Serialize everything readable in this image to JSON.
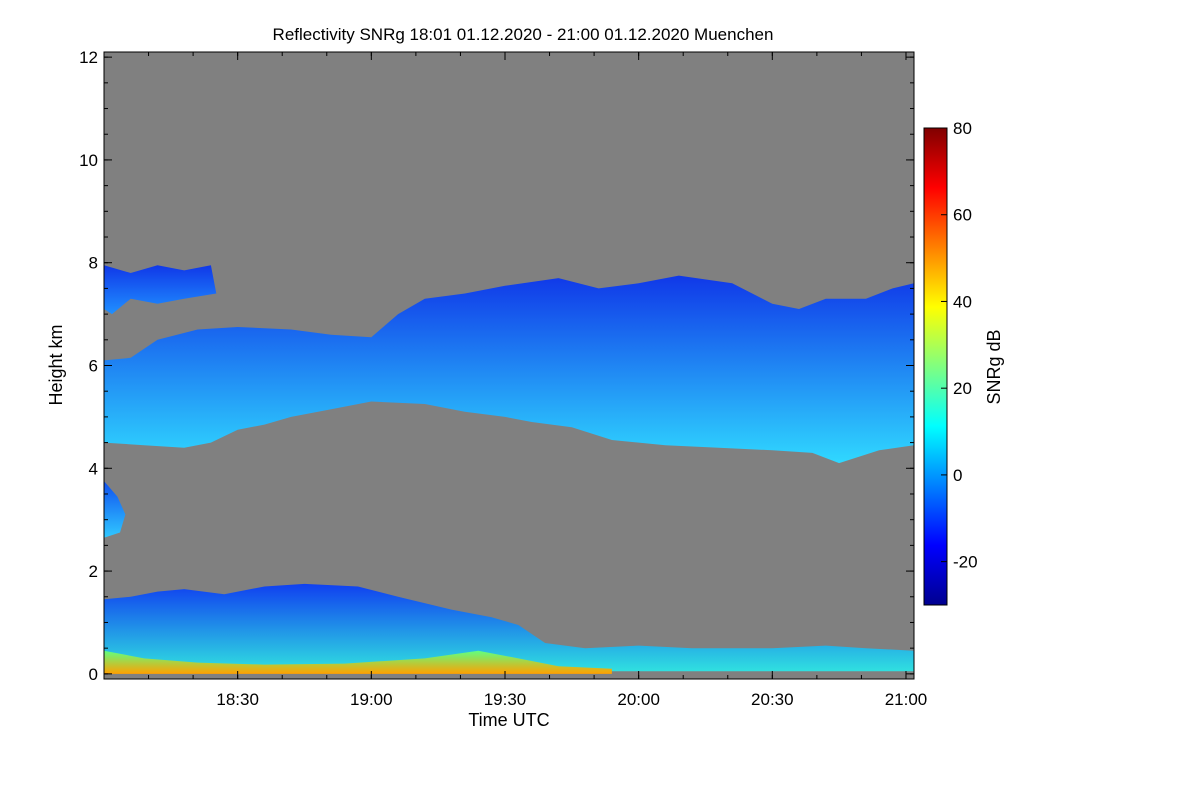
{
  "chart_data": {
    "type": "heatmap",
    "title": "Reflectivity SNRg   18:01 01.12.2020 - 21:00 01.12.2020 Muenchen",
    "xlabel": "Time UTC",
    "ylabel": "Height km",
    "xlim_hours": [
      18.0,
      21.03
    ],
    "ylim": [
      -0.1,
      12.1
    ],
    "x_ticks": [
      {
        "value": 18.5,
        "label": "18:30"
      },
      {
        "value": 19.0,
        "label": "19:00"
      },
      {
        "value": 19.5,
        "label": "19:30"
      },
      {
        "value": 20.0,
        "label": "20:00"
      },
      {
        "value": 20.5,
        "label": "20:30"
      },
      {
        "value": 21.0,
        "label": "21:00"
      }
    ],
    "y_ticks": [
      {
        "value": 0,
        "label": "0"
      },
      {
        "value": 2,
        "label": "2"
      },
      {
        "value": 4,
        "label": "4"
      },
      {
        "value": 6,
        "label": "6"
      },
      {
        "value": 8,
        "label": "8"
      },
      {
        "value": 10,
        "label": "10"
      },
      {
        "value": 12,
        "label": "12"
      }
    ],
    "background_color": "#808080",
    "colorbar": {
      "label": "SNRg dB",
      "range": [
        -30,
        80
      ],
      "ticks": [
        {
          "value": -20,
          "label": "-20"
        },
        {
          "value": 0,
          "label": "0"
        },
        {
          "value": 20,
          "label": "20"
        },
        {
          "value": 40,
          "label": "40"
        },
        {
          "value": 60,
          "label": "60"
        },
        {
          "value": 80,
          "label": "80"
        }
      ],
      "colors": [
        "#00008f",
        "#0000ff",
        "#0080ff",
        "#00ffff",
        "#80ff80",
        "#ffff00",
        "#ff8000",
        "#ff0000",
        "#800000"
      ]
    },
    "regions": [
      {
        "name": "upper-cloud-layer",
        "color_top": "#1038e8",
        "color_bottom": "#30d8ff",
        "outline": [
          [
            18.0,
            6.1
          ],
          [
            18.1,
            6.15
          ],
          [
            18.2,
            6.5
          ],
          [
            18.35,
            6.7
          ],
          [
            18.5,
            6.75
          ],
          [
            18.7,
            6.7
          ],
          [
            18.85,
            6.6
          ],
          [
            19.0,
            6.55
          ],
          [
            19.1,
            7.0
          ],
          [
            19.2,
            7.3
          ],
          [
            19.35,
            7.4
          ],
          [
            19.5,
            7.55
          ],
          [
            19.7,
            7.7
          ],
          [
            19.85,
            7.5
          ],
          [
            20.0,
            7.6
          ],
          [
            20.15,
            7.75
          ],
          [
            20.35,
            7.6
          ],
          [
            20.5,
            7.2
          ],
          [
            20.6,
            7.1
          ],
          [
            20.7,
            7.3
          ],
          [
            20.85,
            7.3
          ],
          [
            20.95,
            7.5
          ],
          [
            21.03,
            7.6
          ],
          [
            21.03,
            4.45
          ],
          [
            20.9,
            4.35
          ],
          [
            20.75,
            4.1
          ],
          [
            20.65,
            4.3
          ],
          [
            20.5,
            4.35
          ],
          [
            20.3,
            4.4
          ],
          [
            20.1,
            4.45
          ],
          [
            19.9,
            4.55
          ],
          [
            19.75,
            4.8
          ],
          [
            19.6,
            4.9
          ],
          [
            19.5,
            5.0
          ],
          [
            19.35,
            5.1
          ],
          [
            19.2,
            5.25
          ],
          [
            19.0,
            5.3
          ],
          [
            18.85,
            5.15
          ],
          [
            18.7,
            5.0
          ],
          [
            18.6,
            4.85
          ],
          [
            18.5,
            4.75
          ],
          [
            18.4,
            4.5
          ],
          [
            18.3,
            4.4
          ],
          [
            18.15,
            4.45
          ],
          [
            18.0,
            4.5
          ]
        ]
      },
      {
        "name": "cloud-top-fragment",
        "color_top": "#1038e8",
        "color_bottom": "#2090ff",
        "outline": [
          [
            18.0,
            7.95
          ],
          [
            18.1,
            7.8
          ],
          [
            18.2,
            7.95
          ],
          [
            18.3,
            7.85
          ],
          [
            18.4,
            7.95
          ],
          [
            18.42,
            7.4
          ],
          [
            18.3,
            7.3
          ],
          [
            18.2,
            7.2
          ],
          [
            18.1,
            7.3
          ],
          [
            18.03,
            7.0
          ],
          [
            18.0,
            7.1
          ]
        ]
      },
      {
        "name": "mid-level-patch",
        "color_top": "#1050f0",
        "color_bottom": "#30c8ff",
        "outline": [
          [
            18.0,
            3.75
          ],
          [
            18.05,
            3.45
          ],
          [
            18.08,
            3.1
          ],
          [
            18.06,
            2.75
          ],
          [
            18.0,
            2.65
          ]
        ]
      },
      {
        "name": "boundary-layer",
        "color_top": "#1040f0",
        "color_bottom": "#30e0e0",
        "outline": [
          [
            18.0,
            1.45
          ],
          [
            18.1,
            1.5
          ],
          [
            18.2,
            1.6
          ],
          [
            18.3,
            1.65
          ],
          [
            18.45,
            1.55
          ],
          [
            18.6,
            1.7
          ],
          [
            18.75,
            1.75
          ],
          [
            18.95,
            1.7
          ],
          [
            19.1,
            1.5
          ],
          [
            19.3,
            1.25
          ],
          [
            19.45,
            1.1
          ],
          [
            19.55,
            0.95
          ],
          [
            19.65,
            0.6
          ],
          [
            19.8,
            0.5
          ],
          [
            20.0,
            0.55
          ],
          [
            20.2,
            0.5
          ],
          [
            20.5,
            0.5
          ],
          [
            20.7,
            0.55
          ],
          [
            20.85,
            0.5
          ],
          [
            21.03,
            0.45
          ],
          [
            21.03,
            0.05
          ],
          [
            18.0,
            0.05
          ]
        ]
      },
      {
        "name": "surface-echo",
        "color_top": "#60ff80",
        "color_bottom": "#ffa000",
        "outline": [
          [
            18.0,
            0.45
          ],
          [
            18.15,
            0.3
          ],
          [
            18.35,
            0.22
          ],
          [
            18.6,
            0.18
          ],
          [
            18.9,
            0.2
          ],
          [
            19.2,
            0.3
          ],
          [
            19.4,
            0.45
          ],
          [
            19.55,
            0.3
          ],
          [
            19.7,
            0.15
          ],
          [
            19.9,
            0.1
          ],
          [
            19.9,
            0.0
          ],
          [
            18.0,
            0.0
          ]
        ]
      }
    ]
  }
}
